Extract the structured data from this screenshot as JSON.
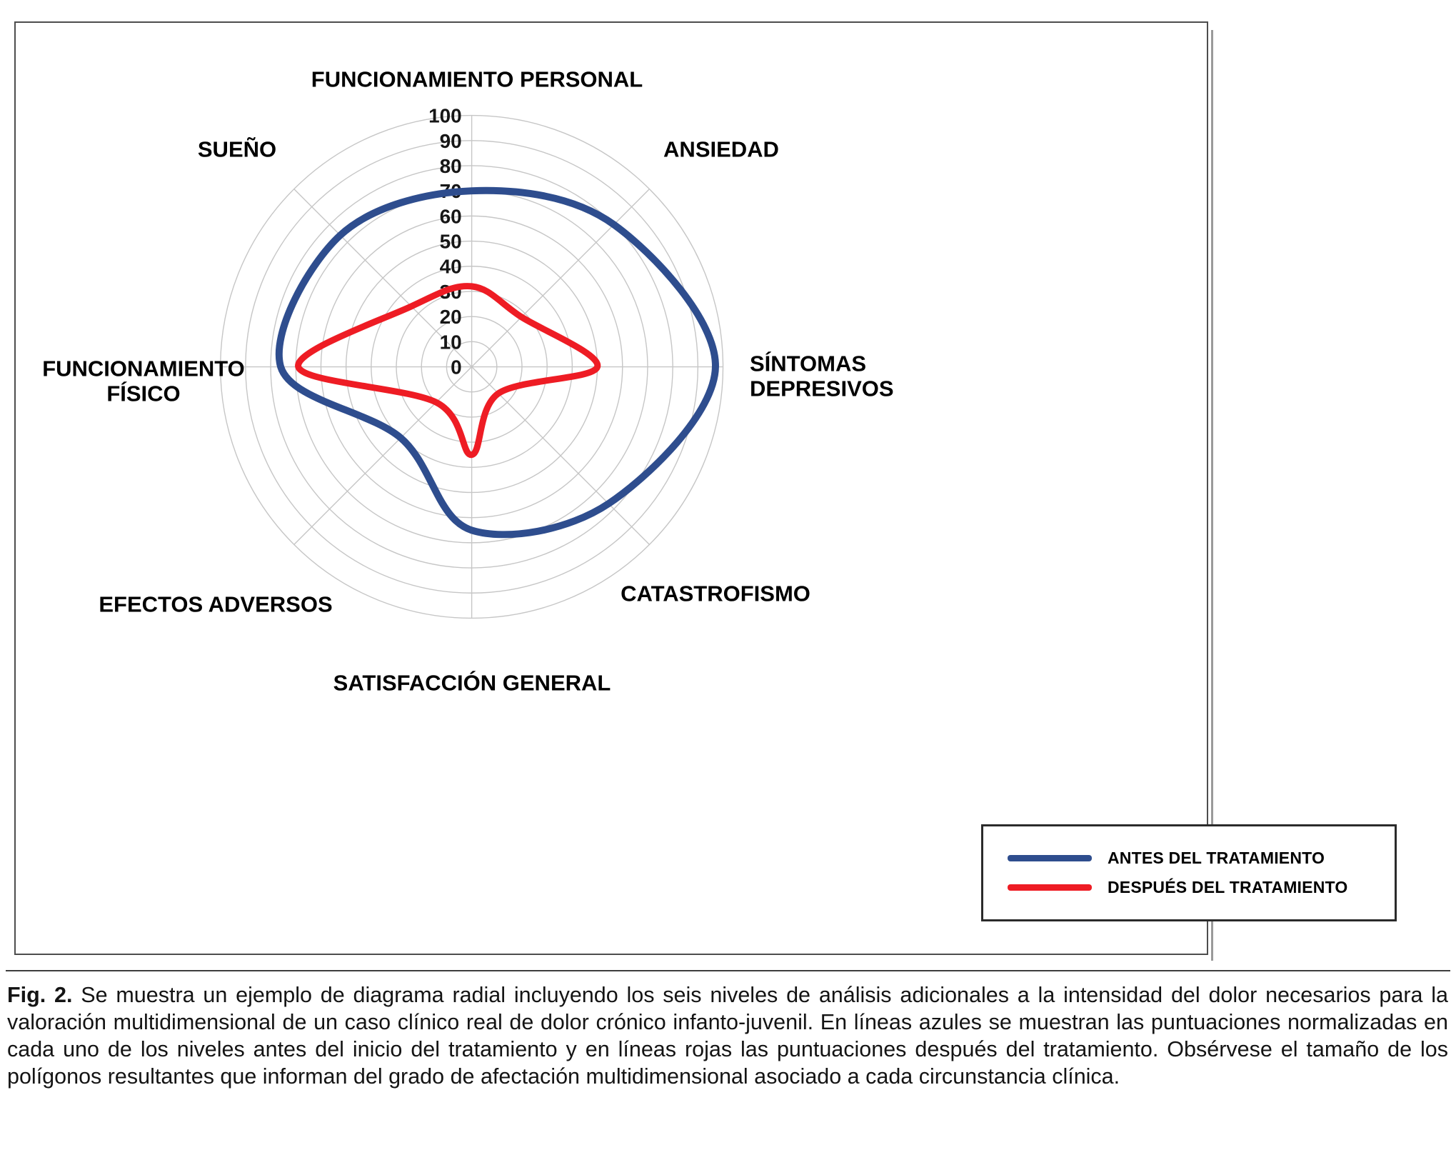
{
  "figure": {
    "caption_label": "Fig. 2.",
    "caption_text": "Se muestra un ejemplo de diagrama radial incluyendo los seis niveles de análisis adicionales a la intensidad del dolor necesarios para la valoración multidimensional de un caso clínico real de dolor crónico infanto-juvenil. En líneas azules se muestran las puntuaciones normalizadas en cada uno de los niveles antes del inicio del tratamiento y en líneas rojas las puntuaciones después del tratamiento. Obsérvese el tamaño de los polígonos resultantes que informan del grado de afectación multidimensional asociado a cada circunstancia clínica."
  },
  "chart_data": {
    "type": "radar",
    "grid": "circular",
    "legend_position": "bottom-right",
    "rmin": 0,
    "rmax": 100,
    "axis_ticks": [
      0,
      10,
      20,
      30,
      40,
      50,
      60,
      70,
      80,
      90,
      100
    ],
    "categories": [
      "FUNCIONAMIENTO PERSONAL",
      "ANSIEDAD",
      "SÍNTOMAS DEPRESIVOS",
      "CATASTROFISMO",
      "SATISFACCIÓN GENERAL",
      "EFECTOS ADVERSOS",
      "FUNCIONAMIENTO FÍSICO",
      "SUEÑO"
    ],
    "series": [
      {
        "name": "ANTES DEL TRATAMIENTO",
        "color": "#2e4d8e",
        "values": [
          70,
          80,
          97,
          77,
          65,
          40,
          76,
          74
        ]
      },
      {
        "name": "DESPUÉS DEL TRATAMIENTO",
        "color": "#ee1c24",
        "values": [
          32,
          28,
          50,
          15,
          35,
          20,
          69,
          34
        ]
      }
    ],
    "colors": {
      "grid": "#c6c6c6",
      "tick_text": "#161616"
    }
  }
}
